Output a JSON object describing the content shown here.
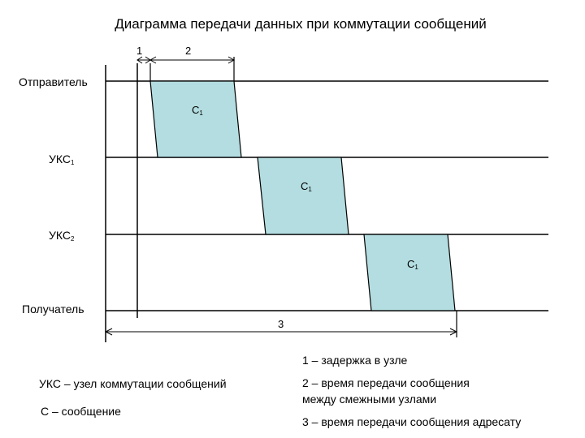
{
  "title": "Диаграмма передачи данных при коммутации сообщений",
  "rows": {
    "sender": "Отправитель",
    "node1_base": "УКС",
    "node1_sub": "1",
    "node2_base": "УКС",
    "node2_sub": "2",
    "receiver": "Получатель"
  },
  "marks": {
    "m1": "1",
    "m2": "2",
    "m3": "3"
  },
  "messages": [
    {
      "base": "C",
      "sub": "1"
    },
    {
      "base": "C",
      "sub": "1"
    },
    {
      "base": "C",
      "sub": "1"
    }
  ],
  "legend": {
    "uks": "УКС – узел коммутации сообщений",
    "c": "С – сообщение",
    "item1": "1 – задержка в узле",
    "item2_line1": "2 – время передачи сообщения",
    "item2_line2": "между смежными узлами",
    "item3": "3 – время передачи сообщения адресату"
  },
  "colors": {
    "message_fill": "#b3dde0",
    "line": "#000000"
  }
}
